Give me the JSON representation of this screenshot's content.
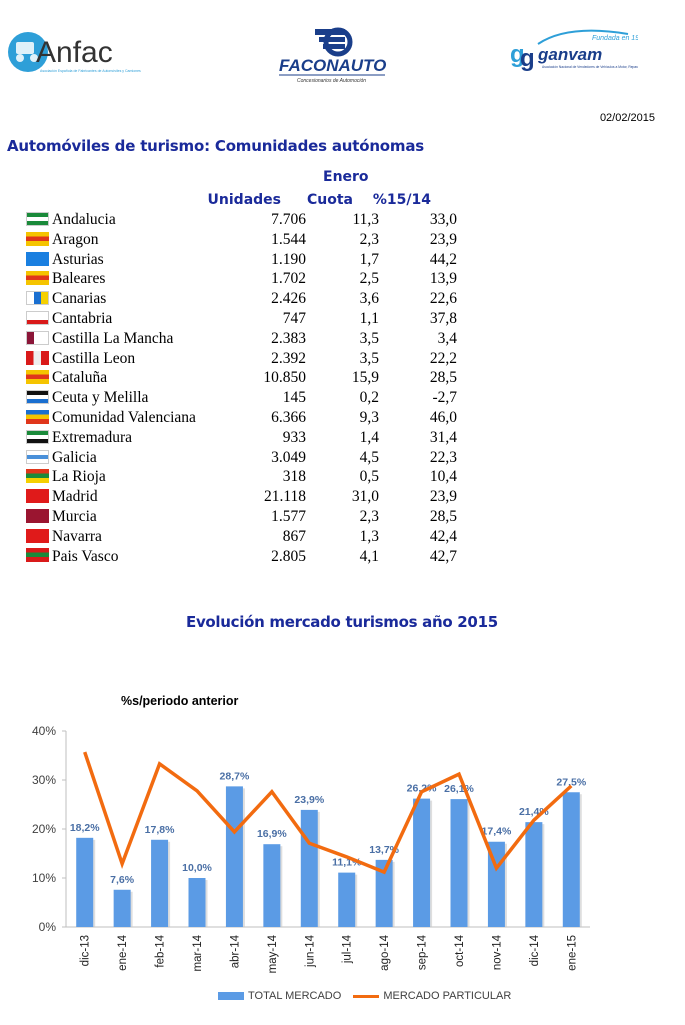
{
  "header": {
    "logos": [
      {
        "name": "Anfac",
        "subtitle": "Asociación Española de Fabricantes de Automóviles y Camiones"
      },
      {
        "name": "FACONAUTO",
        "subtitle": "Concesionarios de Automoción"
      },
      {
        "name": "ganvam",
        "tagline": "Fundada en 1957",
        "subtitle": "Asociación Nacional de Vendedores de Vehículos a Motor, Reparación y Recambios"
      }
    ],
    "date": "02/02/2015"
  },
  "section_title": "Automóviles de turismo: Comunidades autónomas",
  "table": {
    "period": "Enero",
    "columns": [
      "Unidades",
      "Cuota",
      "%15/14"
    ],
    "rows": [
      {
        "region": "Andalucia",
        "unidades": "7.706",
        "cuota": "11,3",
        "var": "33,0",
        "flag": [
          "#1a8a3a",
          "#ffffff",
          "#1a8a3a"
        ]
      },
      {
        "region": "Aragon",
        "unidades": "1.544",
        "cuota": "2,3",
        "var": "23,9",
        "flag": [
          "#f5c400",
          "#e0361b",
          "#f5c400"
        ]
      },
      {
        "region": "Asturias",
        "unidades": "1.190",
        "cuota": "1,7",
        "var": "44,2",
        "flag": [
          "#1a7fe0",
          "#1a7fe0",
          "#1a7fe0"
        ]
      },
      {
        "region": "Baleares",
        "unidades": "1.702",
        "cuota": "2,5",
        "var": "13,9",
        "flag": [
          "#f5c400",
          "#e0361b",
          "#f5c400"
        ]
      },
      {
        "region": "Canarias",
        "unidades": "2.426",
        "cuota": "3,6",
        "var": "22,6",
        "flag": [
          "#ffffff",
          "#1a6fd0",
          "#f5d000"
        ]
      },
      {
        "region": "Cantabria",
        "unidades": "747",
        "cuota": "1,1",
        "var": "37,8",
        "flag": [
          "#ffffff",
          "#ffffff",
          "#d91a1a"
        ]
      },
      {
        "region": "Castilla La Mancha",
        "unidades": "2.383",
        "cuota": "3,5",
        "var": "3,4",
        "flag": [
          "#8b1538",
          "#ffffff",
          "#ffffff"
        ]
      },
      {
        "region": "Castilla Leon",
        "unidades": "2.392",
        "cuota": "3,5",
        "var": "22,2",
        "flag": [
          "#d91a1a",
          "#eeeeee",
          "#d91a1a"
        ]
      },
      {
        "region": "Cataluña",
        "unidades": "10.850",
        "cuota": "15,9",
        "var": "28,5",
        "flag": [
          "#f5c400",
          "#e0361b",
          "#f5c400"
        ]
      },
      {
        "region": "Ceuta y Melilla",
        "unidades": "145",
        "cuota": "0,2",
        "var": "-2,7",
        "flag": [
          "#111111",
          "#ffffff",
          "#1a6fd0"
        ]
      },
      {
        "region": "Comunidad Valenciana",
        "unidades": "6.366",
        "cuota": "9,3",
        "var": "46,0",
        "flag": [
          "#1a6fd0",
          "#f5c400",
          "#e0361b"
        ]
      },
      {
        "region": "Extremadura",
        "unidades": "933",
        "cuota": "1,4",
        "var": "31,4",
        "flag": [
          "#1a8a3a",
          "#ffffff",
          "#111111"
        ]
      },
      {
        "region": "Galicia",
        "unidades": "3.049",
        "cuota": "4,5",
        "var": "22,3",
        "flag": [
          "#ffffff",
          "#4a90d9",
          "#ffffff"
        ]
      },
      {
        "region": "La Rioja",
        "unidades": "318",
        "cuota": "0,5",
        "var": "10,4",
        "flag": [
          "#e0361b",
          "#1a8a3a",
          "#f5d000"
        ]
      },
      {
        "region": "Madrid",
        "unidades": "21.118",
        "cuota": "31,0",
        "var": "23,9",
        "flag": [
          "#e01a1a",
          "#e01a1a",
          "#e01a1a"
        ]
      },
      {
        "region": "Murcia",
        "unidades": "1.577",
        "cuota": "2,3",
        "var": "28,5",
        "flag": [
          "#9a1530",
          "#9a1530",
          "#9a1530"
        ]
      },
      {
        "region": "Navarra",
        "unidades": "867",
        "cuota": "1,3",
        "var": "42,4",
        "flag": [
          "#e01a1a",
          "#e01a1a",
          "#e01a1a"
        ]
      },
      {
        "region": "Pais Vasco",
        "unidades": "2.805",
        "cuota": "4,1",
        "var": "42,7",
        "flag": [
          "#d91a1a",
          "#1a8a3a",
          "#d91a1a"
        ]
      }
    ]
  },
  "chart_title": "Evolución mercado turismos año 2015",
  "chart_data": {
    "type": "bar",
    "title": "Evolución mercado turismos año 2015",
    "subtitle": "%s/periodo anterior",
    "xlabel": "",
    "ylabel": "",
    "ylim": [
      0,
      40
    ],
    "yticks": [
      "0%",
      "10%",
      "20%",
      "30%",
      "40%"
    ],
    "categories": [
      "dic-13",
      "ene-14",
      "feb-14",
      "mar-14",
      "abr-14",
      "may-14",
      "jun-14",
      "jul-14",
      "ago-14",
      "sep-14",
      "oct-14",
      "nov-14",
      "dic-14",
      "ene-15"
    ],
    "series": [
      {
        "name": "TOTAL MERCADO",
        "type": "bar",
        "color": "#5b9be5",
        "values": [
          18.2,
          7.6,
          17.8,
          10.0,
          28.7,
          16.9,
          23.9,
          11.1,
          13.7,
          26.2,
          26.1,
          17.4,
          21.4,
          27.5
        ],
        "labels": [
          "18,2%",
          "7,6%",
          "17,8%",
          "10,0%",
          "28,7%",
          "16,9%",
          "23,9%",
          "11,1%",
          "13,7%",
          "26,2%",
          "26,1%",
          "17,4%",
          "21,4%",
          "27,5%"
        ]
      },
      {
        "name": "MERCADO PARTICULAR",
        "type": "line",
        "color": "#f26b10",
        "values": [
          35.7,
          12.9,
          33.3,
          27.8,
          19.4,
          27.6,
          17.1,
          14.3,
          11.2,
          27.6,
          31.2,
          12.0,
          21.8,
          28.8
        ]
      }
    ],
    "legend_position": "bottom",
    "grid": false
  }
}
